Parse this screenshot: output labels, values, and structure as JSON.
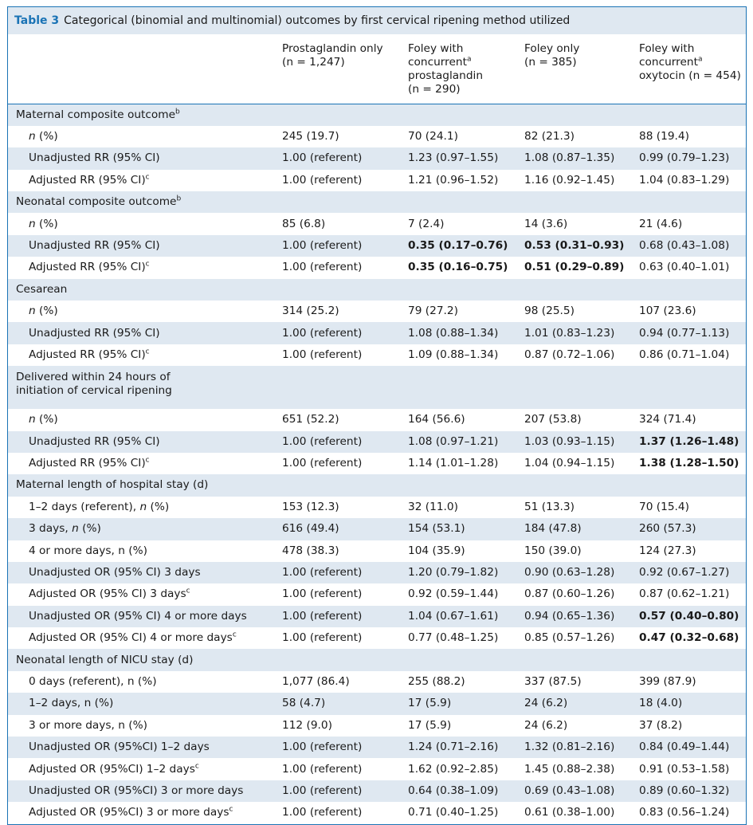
{
  "table": {
    "label": "Table 3",
    "title": "Categorical (binomial and multinomial) outcomes by first cervical ripening method utilized",
    "columns": [
      {
        "line1": "Prostaglandin only",
        "line2": "(n = 1,247)"
      },
      {
        "line1": "Foley with",
        "line2": "concurrent",
        "sup": "a",
        "line3": "prostaglandin",
        "line4": "(n = 290)"
      },
      {
        "line1": "Foley only",
        "line2": "(n = 385)"
      },
      {
        "line1": "Foley with",
        "line2": "concurrent",
        "sup": "a",
        "line3": "oxytocin (n = 454)"
      }
    ],
    "rows": [
      {
        "type": "section",
        "label": "Maternal composite outcome",
        "sup": "b"
      },
      {
        "type": "data",
        "label": "n (%)",
        "cells": [
          "245 (19.7)",
          "70 (24.1)",
          "82 (21.3)",
          "88 (19.4)"
        ]
      },
      {
        "type": "data",
        "label": "Unadjusted RR (95% CI)",
        "cells": [
          "1.00 (referent)",
          "1.23 (0.97–1.55)",
          "1.08 (0.87–1.35)",
          "0.99 (0.79–1.23)"
        ]
      },
      {
        "type": "data",
        "label": "Adjusted RR (95% CI)",
        "sup": "c",
        "cells": [
          "1.00 (referent)",
          "1.21 (0.96–1.52)",
          "1.16 (0.92–1.45)",
          "1.04 (0.83–1.29)"
        ]
      },
      {
        "type": "section",
        "label": "Neonatal composite outcome",
        "sup": "b"
      },
      {
        "type": "data",
        "label": "n (%)",
        "cells": [
          "85 (6.8)",
          "7 (2.4)",
          "14 (3.6)",
          "21 (4.6)"
        ]
      },
      {
        "type": "data",
        "label": "Unadjusted RR (95% CI)",
        "cells": [
          "1.00 (referent)",
          "0.35 (0.17–0.76)",
          "0.53 (0.31–0.93)",
          "0.68 (0.43–1.08)"
        ],
        "bold": [
          1,
          2
        ]
      },
      {
        "type": "data",
        "label": "Adjusted RR (95% CI)",
        "sup": "c",
        "cells": [
          "1.00 (referent)",
          "0.35 (0.16–0.75)",
          "0.51 (0.29–0.89)",
          "0.63 (0.40–1.01)"
        ],
        "bold": [
          1,
          2
        ]
      },
      {
        "type": "section",
        "label": "Cesarean"
      },
      {
        "type": "data",
        "label": "n (%)",
        "cells": [
          "314 (25.2)",
          "79 (27.2)",
          "98 (25.5)",
          "107 (23.6)"
        ]
      },
      {
        "type": "data",
        "label": "Unadjusted RR (95% CI)",
        "cells": [
          "1.00 (referent)",
          "1.08 (0.88–1.34)",
          "1.01 (0.83–1.23)",
          "0.94 (0.77–1.13)"
        ]
      },
      {
        "type": "data",
        "label": "Adjusted RR (95% CI)",
        "sup": "c",
        "cells": [
          "1.00 (referent)",
          "1.09 (0.88–1.34)",
          "0.87 (0.72–1.06)",
          "0.86 (0.71–1.04)"
        ]
      },
      {
        "type": "section",
        "label": "Delivered within 24 hours of",
        "label2": "initiation of cervical ripening"
      },
      {
        "type": "data",
        "label": "n (%)",
        "cells": [
          "651 (52.2)",
          "164 (56.6)",
          "207 (53.8)",
          "324 (71.4)"
        ]
      },
      {
        "type": "data",
        "label": "Unadjusted RR (95% CI)",
        "cells": [
          "1.00 (referent)",
          "1.08 (0.97–1.21)",
          "1.03 (0.93–1.15)",
          "1.37 (1.26–1.48)"
        ],
        "bold": [
          3
        ]
      },
      {
        "type": "data",
        "label": "Adjusted RR (95% CI)",
        "sup": "c",
        "cells": [
          "1.00 (referent)",
          "1.14 (1.01–1.28)",
          "1.04 (0.94–1.15)",
          "1.38 (1.28–1.50)"
        ],
        "bold": [
          3
        ]
      },
      {
        "type": "section",
        "label": "Maternal length of hospital stay (d)"
      },
      {
        "type": "data",
        "label": "1–2 days (referent), ",
        "italic_tail": "n",
        "tail": " (%)",
        "cells": [
          "153 (12.3)",
          "32 (11.0)",
          "51 (13.3)",
          "70 (15.4)"
        ]
      },
      {
        "type": "data",
        "label": "3 days, ",
        "italic_tail": "n",
        "tail": " (%)",
        "cells": [
          "616 (49.4)",
          "154 (53.1)",
          "184 (47.8)",
          "260 (57.3)"
        ]
      },
      {
        "type": "data",
        "label": "4 or more days, n (%)",
        "cells": [
          "478 (38.3)",
          "104 (35.9)",
          "150 (39.0)",
          "124 (27.3)"
        ]
      },
      {
        "type": "data",
        "label": "Unadjusted OR (95% CI) 3 days",
        "cells": [
          "1.00 (referent)",
          "1.20 (0.79–1.82)",
          "0.90 (0.63–1.28)",
          "0.92 (0.67–1.27)"
        ]
      },
      {
        "type": "data",
        "label": "Adjusted OR (95% CI) 3 days",
        "sup": "c",
        "cells": [
          "1.00 (referent)",
          "0.92 (0.59–1.44)",
          "0.87 (0.60–1.26)",
          "0.87 (0.62–1.21)"
        ]
      },
      {
        "type": "data",
        "label": "Unadjusted OR (95% CI) 4 or more days",
        "cells": [
          "1.00 (referent)",
          "1.04 (0.67–1.61)",
          "0.94 (0.65–1.36)",
          "0.57 (0.40–0.80)"
        ],
        "bold": [
          3
        ]
      },
      {
        "type": "data",
        "label": "Adjusted OR (95% CI) 4 or more days",
        "sup": "c",
        "cells": [
          "1.00 (referent)",
          "0.77 (0.48–1.25)",
          "0.85 (0.57–1.26)",
          "0.47 (0.32–0.68)"
        ],
        "bold": [
          3
        ]
      },
      {
        "type": "section",
        "label": "Neonatal length of NICU stay (d)"
      },
      {
        "type": "data",
        "label": "0 days (referent), n (%)",
        "cells": [
          "1,077 (86.4)",
          "255 (88.2)",
          "337 (87.5)",
          "399 (87.9)"
        ]
      },
      {
        "type": "data",
        "label": "1–2 days, n (%)",
        "cells": [
          "58 (4.7)",
          "17 (5.9)",
          "24 (6.2)",
          "18 (4.0)"
        ]
      },
      {
        "type": "data",
        "label": "3 or more days, n (%)",
        "cells": [
          "112 (9.0)",
          "17 (5.9)",
          "24 (6.2)",
          "37 (8.2)"
        ]
      },
      {
        "type": "data",
        "label": "Unadjusted OR (95%CI) 1–2 days",
        "cells": [
          "1.00 (referent)",
          "1.24 (0.71–2.16)",
          "1.32 (0.81–2.16)",
          "0.84 (0.49–1.44)"
        ]
      },
      {
        "type": "data",
        "label": "Adjusted OR (95%CI) 1–2 days",
        "sup": "c",
        "cells": [
          "1.00 (referent)",
          "1.62 (0.92–2.85)",
          "1.45 (0.88–2.38)",
          "0.91 (0.53–1.58)"
        ]
      },
      {
        "type": "data",
        "label": "Unadjusted OR (95%CI) 3 or more days",
        "cells": [
          "1.00 (referent)",
          "0.64 (0.38–1.09)",
          "0.69 (0.43–1.08)",
          "0.89 (0.60–1.32)"
        ]
      },
      {
        "type": "data",
        "label": "Adjusted OR (95%CI) 3 or more days",
        "sup": "c",
        "cells": [
          "1.00 (referent)",
          "0.71 (0.40–1.25)",
          "0.61 (0.38–1.00)",
          "0.83 (0.56–1.24)"
        ]
      }
    ]
  },
  "colors": {
    "accent": "#1a73b5",
    "shade": "#dfe8f1"
  }
}
